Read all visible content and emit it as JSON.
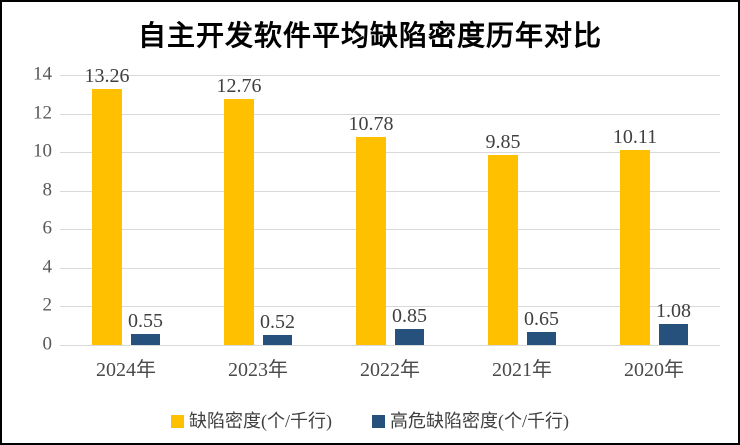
{
  "chart_data": {
    "type": "bar",
    "title": "自主开发软件平均缺陷密度历年对比",
    "categories": [
      "2024年",
      "2023年",
      "2022年",
      "2021年",
      "2020年"
    ],
    "series": [
      {
        "name": "缺陷密度(个/千行)",
        "color": "#FFC000",
        "values": [
          13.26,
          12.76,
          10.78,
          9.85,
          10.11
        ],
        "labels": [
          "13.26",
          "12.76",
          "10.78",
          "9.85",
          "10.11"
        ]
      },
      {
        "name": "高危缺陷密度(个/千行)",
        "color": "#25517C",
        "values": [
          0.55,
          0.52,
          0.85,
          0.65,
          1.08
        ],
        "labels": [
          "0.55",
          "0.52",
          "0.85",
          "0.65",
          "1.08"
        ]
      }
    ],
    "xlabel": "",
    "ylabel": "",
    "ylim": [
      0,
      14
    ],
    "yticks": [
      0,
      2,
      4,
      6,
      8,
      10,
      12,
      14
    ],
    "grid": true,
    "legend_position": "bottom",
    "background_color": "#FFFFFF",
    "border_color": "#000000",
    "gridline_color": "#D9D9D9",
    "label_color": "#404040",
    "axis_text_color": "#595959"
  }
}
